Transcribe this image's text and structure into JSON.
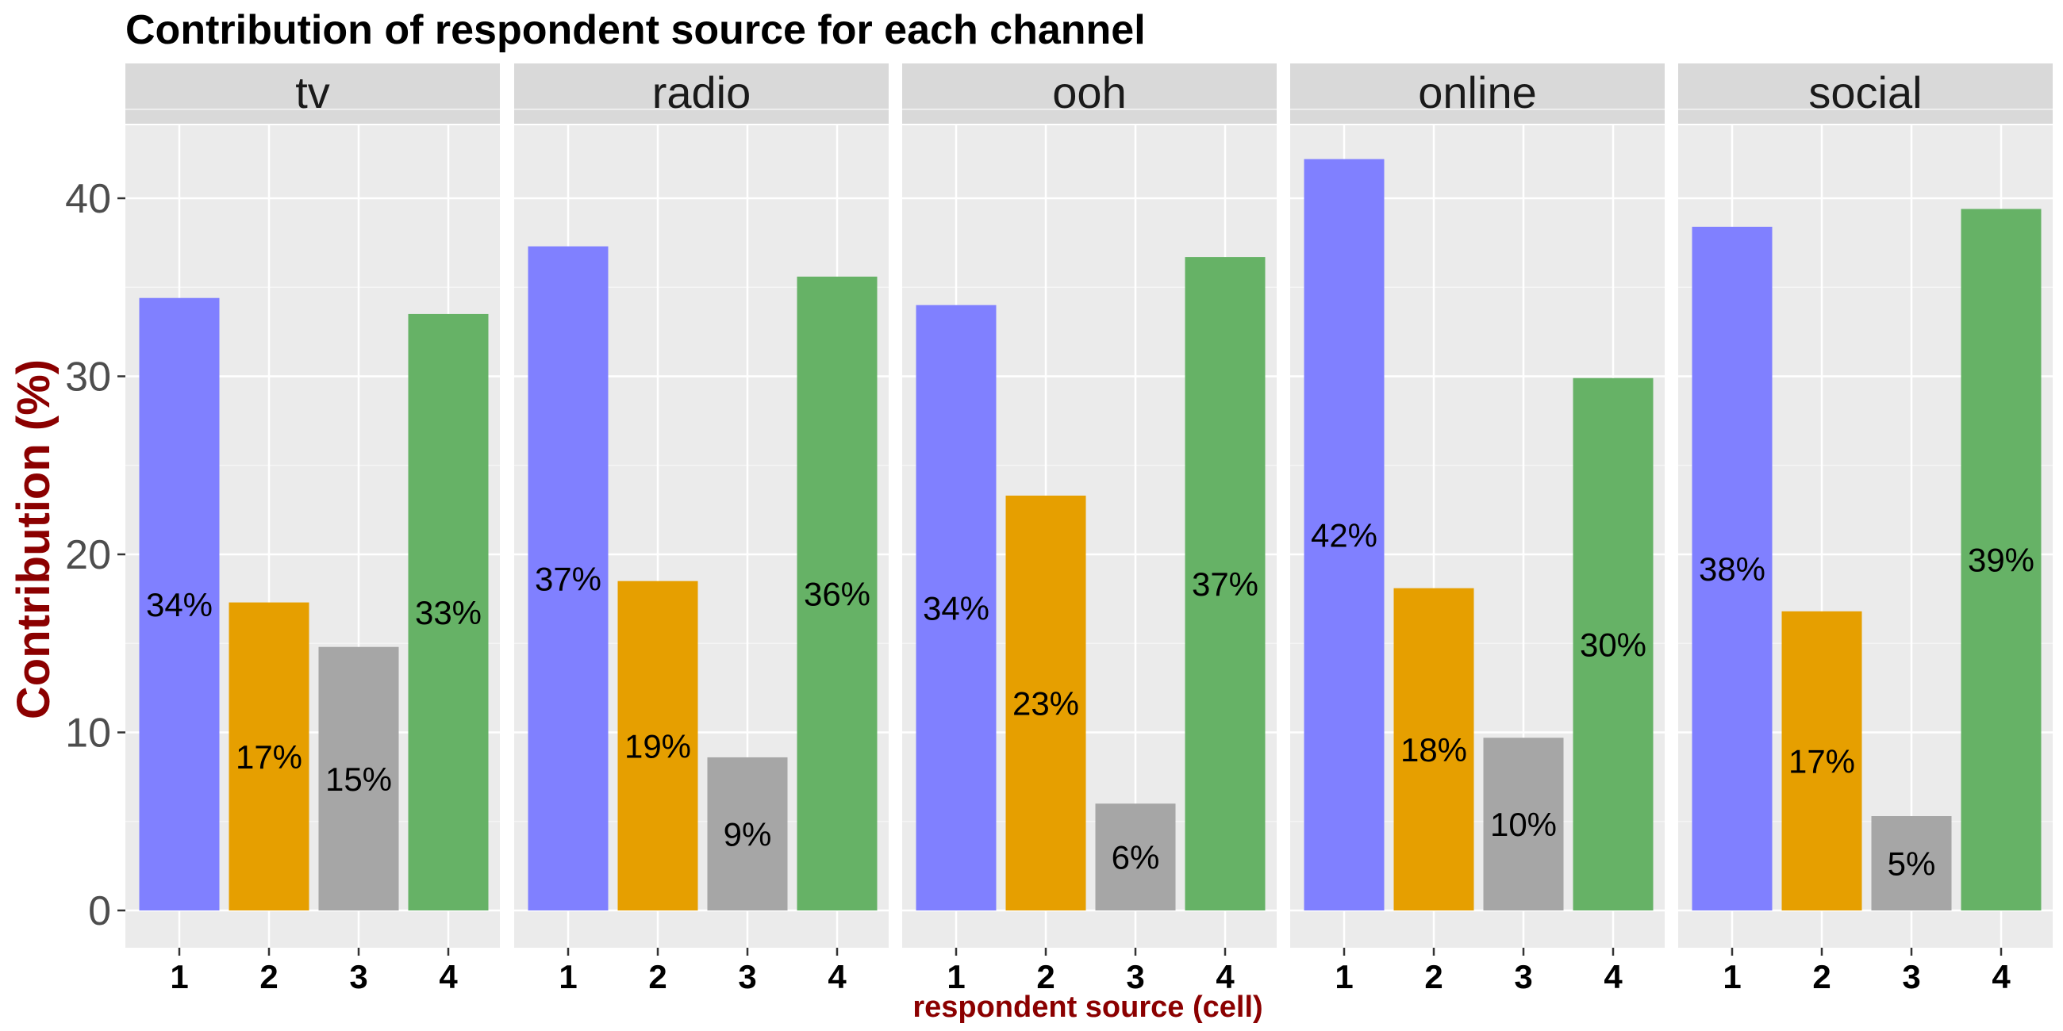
{
  "chart_data": {
    "type": "bar",
    "title": "Contribution of respondent source for each channel",
    "xlabel": "respondent source (cell)",
    "ylabel": "Contribution (%)",
    "ylim": [
      0,
      45
    ],
    "yticks": [
      0,
      10,
      20,
      30,
      40
    ],
    "categories": [
      "1",
      "2",
      "3",
      "4"
    ],
    "grid": true,
    "legend": "none",
    "colors": {
      "1": "#8080FF",
      "2": "#E69F00",
      "3": "#A6A6A6",
      "4": "#66B266",
      "axis_title": "#8B0000",
      "panel_bg": "#EBEBEB",
      "strip_bg": "#D9D9D9"
    },
    "facets": [
      {
        "name": "tv",
        "values": [
          34.4,
          17.3,
          14.8,
          33.5
        ],
        "labels": [
          "34%",
          "17%",
          "15%",
          "33%"
        ]
      },
      {
        "name": "radio",
        "values": [
          37.3,
          18.5,
          8.6,
          35.6
        ],
        "labels": [
          "37%",
          "19%",
          "9%",
          "36%"
        ]
      },
      {
        "name": "ooh",
        "values": [
          34.0,
          23.3,
          6.0,
          36.7
        ],
        "labels": [
          "34%",
          "23%",
          "6%",
          "37%"
        ]
      },
      {
        "name": "online",
        "values": [
          42.2,
          18.1,
          9.7,
          29.9
        ],
        "labels": [
          "42%",
          "18%",
          "10%",
          "30%"
        ]
      },
      {
        "name": "social",
        "values": [
          38.4,
          16.8,
          5.3,
          39.4
        ],
        "labels": [
          "38%",
          "17%",
          "5%",
          "39%"
        ]
      }
    ]
  }
}
